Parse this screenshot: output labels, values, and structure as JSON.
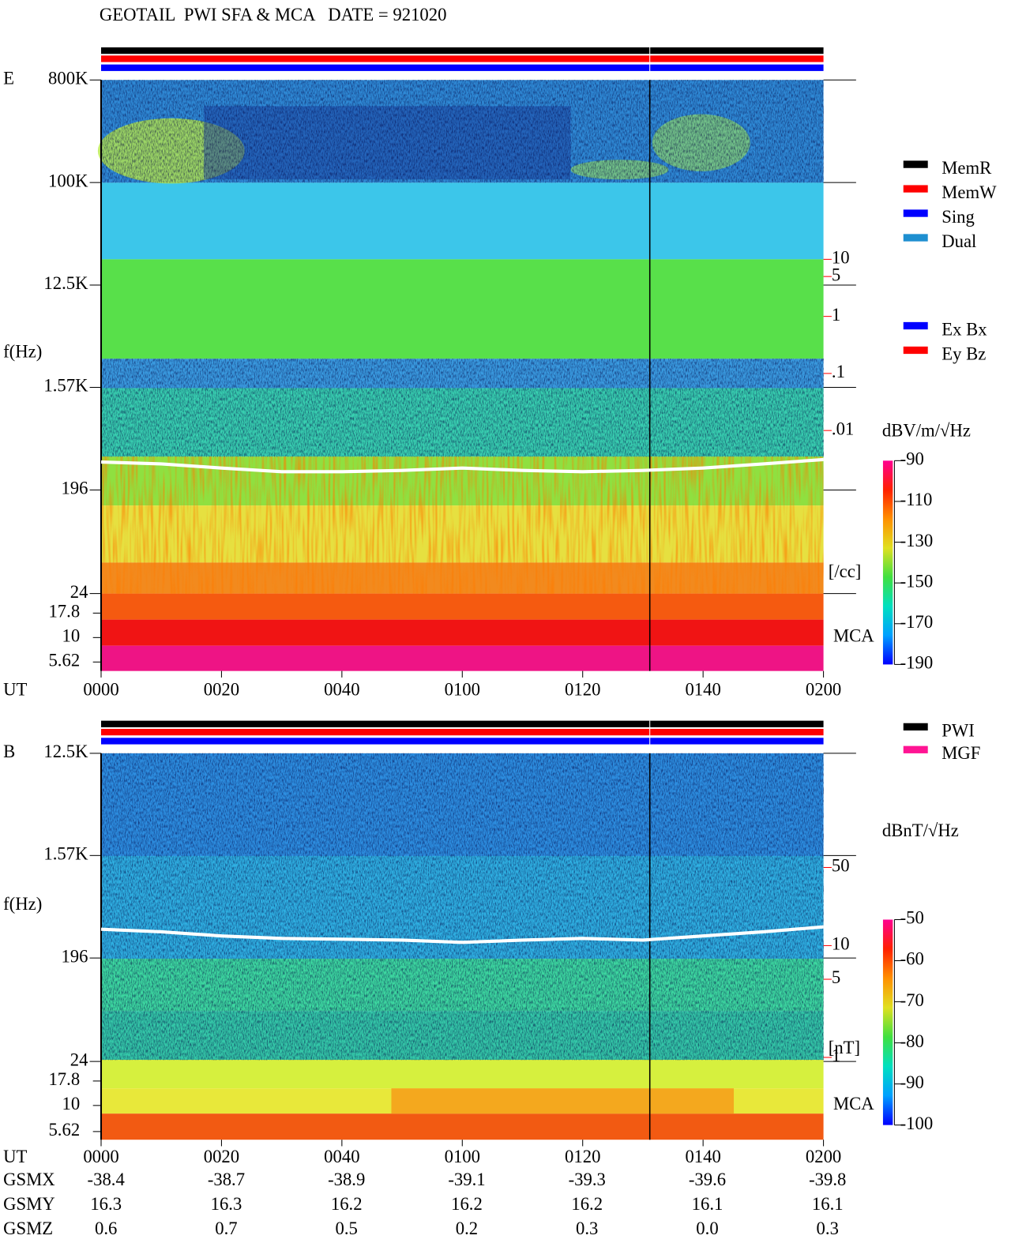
{
  "chart_data": [
    {
      "type": "spectrogram",
      "title": "GEOTAIL  PWI SFA & MCA   DATE = 921020",
      "panel_label": "E",
      "ylabel": "f(Hz)",
      "xlabel": "UT",
      "log_y": true,
      "xlim": [
        0,
        120
      ],
      "xticks": [
        {
          "value": 0,
          "label": "0000"
        },
        {
          "value": 20,
          "label": "0020"
        },
        {
          "value": 40,
          "label": "0040"
        },
        {
          "value": 60,
          "label": "0100"
        },
        {
          "value": 80,
          "label": "0120"
        },
        {
          "value": 100,
          "label": "0140"
        },
        {
          "value": 120,
          "label": "0200"
        }
      ],
      "ylim": [
        24,
        800000
      ],
      "yticks": [
        {
          "value": 800000,
          "label": "800K"
        },
        {
          "value": 100000,
          "label": "100K"
        },
        {
          "value": 12500,
          "label": "12.5K"
        },
        {
          "value": 1570,
          "label": "1.57K"
        },
        196,
        24
      ],
      "mca_label": "MCA",
      "mca_ticks": [
        17.8,
        10,
        5.62
      ],
      "y2_log": true,
      "y2lim": [
        1.39e-05,
        13900
      ],
      "y2ticks": [
        10,
        5,
        1,
        {
          "value": 0.1,
          "label": ".1"
        },
        {
          "value": 0.01,
          "label": ".01"
        }
      ],
      "y2label": "[/cc]",
      "y2_color": "#ff0000",
      "series": [
        {
          "color": "#ffffff",
          "axis": "y2",
          "x": [
            0,
            10,
            20,
            30,
            40,
            50,
            60,
            70,
            80,
            90,
            100,
            110,
            120
          ],
          "values": [
            0.0028,
            0.0026,
            0.0022,
            0.0019,
            0.0019,
            0.002,
            0.0022,
            0.002,
            0.0019,
            0.002,
            0.0022,
            0.0026,
            0.0031
          ]
        }
      ],
      "legend": [
        {
          "name": "MemR",
          "color": "#000000"
        },
        {
          "name": "MemW",
          "color": "#ff0000"
        },
        {
          "name": "Sing",
          "color": "#0000ff"
        },
        {
          "name": "Dual",
          "color": "#1e8fd0"
        }
      ],
      "legend2": [
        {
          "name": "Ex Bx",
          "color": "#0000ff"
        },
        {
          "name": "Ey Bz",
          "color": "#ff0000"
        }
      ],
      "colorbar": {
        "label": "dBV/m/√Hz",
        "clim": [
          -190,
          -90
        ],
        "ticks": [
          -90,
          -110,
          -130,
          -150,
          -170,
          -190
        ]
      }
    },
    {
      "type": "spectrogram",
      "panel_label": "B",
      "ylabel": "f(Hz)",
      "xlabel": "UT",
      "log_y": true,
      "xlim": [
        0,
        120
      ],
      "xticks": [
        {
          "value": 0,
          "label": "0000"
        },
        {
          "value": 20,
          "label": "0020"
        },
        {
          "value": 40,
          "label": "0040"
        },
        {
          "value": 60,
          "label": "0100"
        },
        {
          "value": 80,
          "label": "0120"
        },
        {
          "value": 100,
          "label": "0140"
        },
        {
          "value": 120,
          "label": "0200"
        }
      ],
      "ylim": [
        24,
        12500
      ],
      "yticks": [
        {
          "value": 12500,
          "label": "12.5K"
        },
        {
          "value": 1570,
          "label": "1.57K"
        },
        196,
        24
      ],
      "mca_label": "MCA",
      "mca_ticks": [
        17.8,
        10,
        5.62
      ],
      "y2_log": true,
      "y2lim": [
        0.92,
        525
      ],
      "y2ticks": [
        50,
        10,
        5,
        1
      ],
      "y2label": "[nT]",
      "y2_color": "#ff0000",
      "series": [
        {
          "color": "#ffffff",
          "axis": "y2",
          "x": [
            0,
            10,
            20,
            30,
            40,
            50,
            60,
            70,
            80,
            90,
            100,
            110,
            120
          ],
          "values": [
            14.0,
            13.3,
            12.2,
            11.6,
            11.4,
            11.2,
            10.7,
            11.2,
            11.6,
            11.2,
            12.2,
            13.3,
            14.7
          ]
        }
      ],
      "legend": [
        {
          "name": "PWI",
          "color": "#000000"
        },
        {
          "name": "MGF",
          "color": "#ff1493"
        }
      ],
      "colorbar": {
        "label": "dBnT/√Hz",
        "clim": [
          -100,
          -50
        ],
        "ticks": [
          -50,
          -60,
          -70,
          -80,
          -90,
          -100
        ]
      }
    }
  ],
  "orbit_table": {
    "header": "UT",
    "rows": [
      {
        "label": "GSMX",
        "values": [
          -38.4,
          -38.7,
          -38.9,
          -39.1,
          -39.3,
          -39.6,
          -39.8
        ]
      },
      {
        "label": "GSMY",
        "values": [
          16.3,
          16.3,
          16.2,
          16.2,
          16.2,
          16.1,
          16.1
        ]
      },
      {
        "label": "GSMZ",
        "values": [
          0.6,
          0.7,
          0.5,
          0.2,
          0.3,
          {
            "value": 0,
            "label": "0.0"
          },
          0.3
        ]
      }
    ]
  }
}
